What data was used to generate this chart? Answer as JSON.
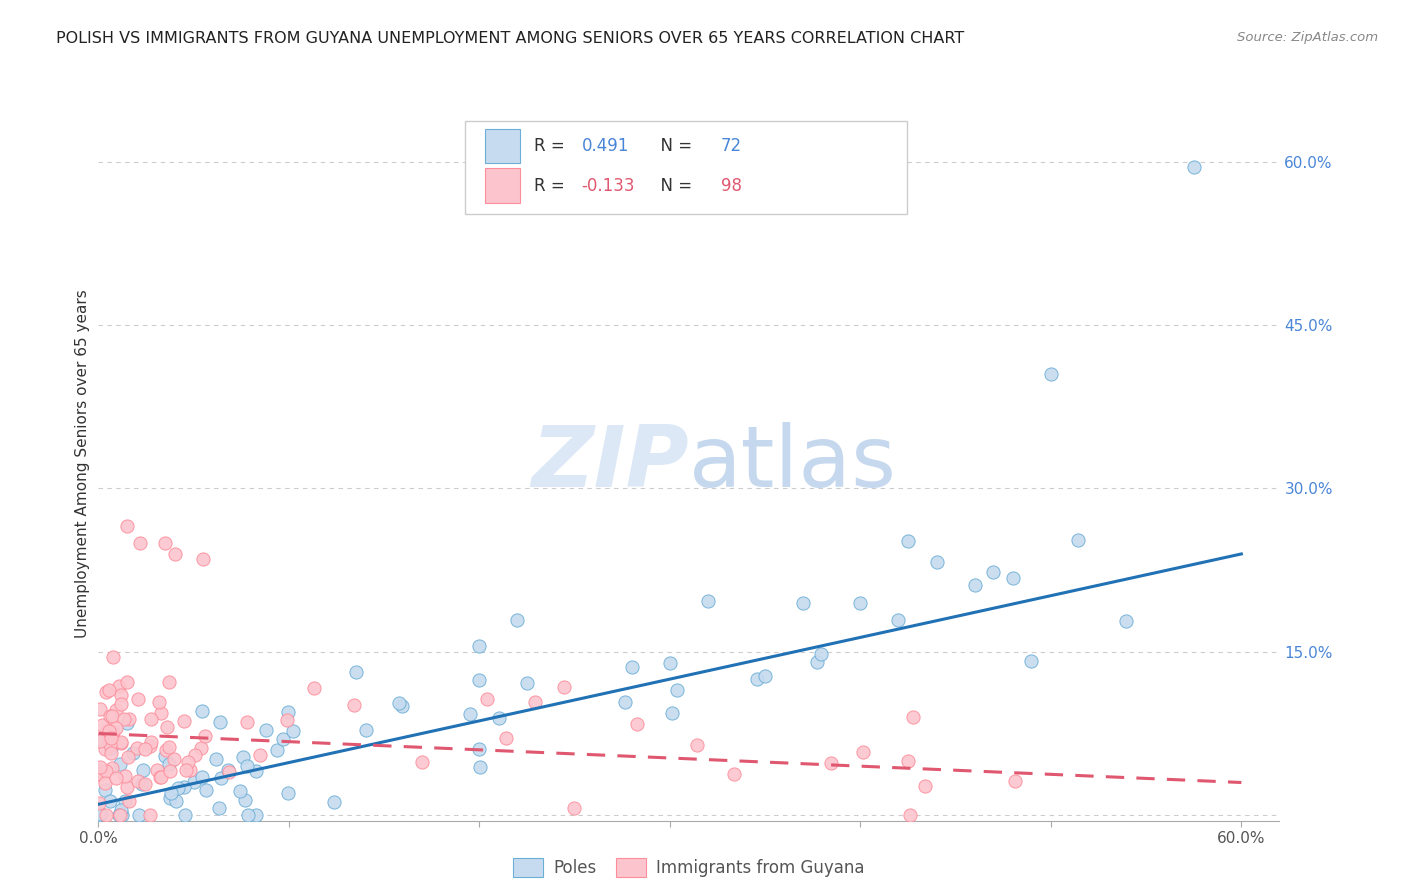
{
  "title": "POLISH VS IMMIGRANTS FROM GUYANA UNEMPLOYMENT AMONG SENIORS OVER 65 YEARS CORRELATION CHART",
  "source": "Source: ZipAtlas.com",
  "ylabel": "Unemployment Among Seniors over 65 years",
  "xlim": [
    0.0,
    0.62
  ],
  "ylim": [
    -0.005,
    0.65
  ],
  "xtick_positions": [
    0.0,
    0.1,
    0.2,
    0.3,
    0.4,
    0.5,
    0.6
  ],
  "xticklabels": [
    "0.0%",
    "",
    "",
    "",
    "",
    "",
    "60.0%"
  ],
  "yticks_right": [
    0.0,
    0.15,
    0.3,
    0.45,
    0.6
  ],
  "ytick_labels_right": [
    "",
    "15.0%",
    "30.0%",
    "45.0%",
    "60.0%"
  ],
  "background_color": "#ffffff",
  "grid_color": "#cccccc",
  "watermark_zip": "ZIP",
  "watermark_atlas": "atlas",
  "blue_edge": "#6baed6",
  "blue_face": "#c6dbef",
  "pink_edge": "#fc8d9b",
  "pink_face": "#fcc5cd",
  "blue_line_color": "#2171b5",
  "pink_line_color": "#e05870",
  "r1_value": "0.491",
  "r2_value": "-0.133",
  "n1": 72,
  "n2": 98,
  "seed": 12345
}
